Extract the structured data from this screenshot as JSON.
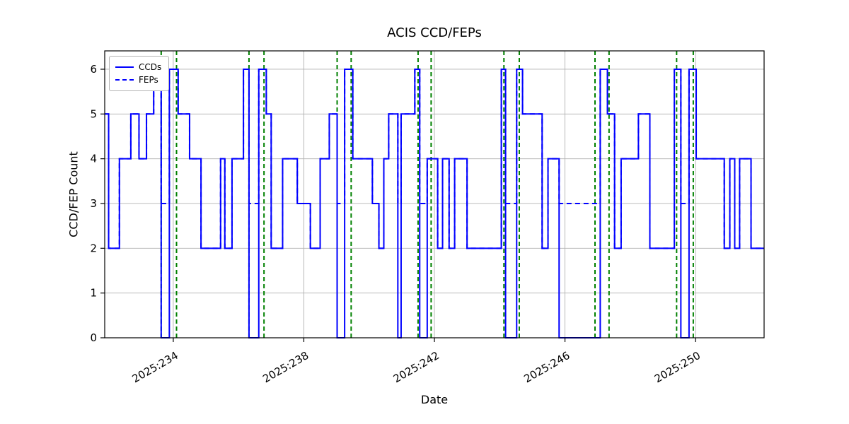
{
  "chart_data": {
    "type": "line",
    "title": "ACIS CCD/FEPs",
    "xlabel": "Date",
    "ylabel": "CCD/FEP Count",
    "xlim": [
      231.9,
      252.1
    ],
    "ylim": [
      0,
      6.41
    ],
    "x_ticks": [
      234,
      238,
      242,
      246,
      250
    ],
    "x_tick_labels": [
      "2025:234",
      "2025:238",
      "2025:242",
      "2025:246",
      "2025:250"
    ],
    "y_ticks": [
      0,
      1,
      2,
      3,
      4,
      5,
      6
    ],
    "grid": true,
    "legend_position": "upper-left",
    "colors": {
      "line": "#0000ff",
      "radzone": "#008000",
      "grid": "#b0b0b0",
      "spine": "#000000"
    },
    "series": [
      {
        "name": "CCDs",
        "style": "solid",
        "steps": [
          [
            231.9,
            5
          ],
          [
            232.02,
            2
          ],
          [
            232.35,
            4
          ],
          [
            232.7,
            5
          ],
          [
            232.95,
            4
          ],
          [
            233.18,
            5
          ],
          [
            233.4,
            6
          ],
          [
            233.63,
            0
          ],
          [
            233.88,
            6
          ],
          [
            234.15,
            5
          ],
          [
            234.5,
            4
          ],
          [
            234.85,
            2
          ],
          [
            235.45,
            4
          ],
          [
            235.58,
            2
          ],
          [
            235.8,
            4
          ],
          [
            236.15,
            6
          ],
          [
            236.32,
            0
          ],
          [
            236.62,
            6
          ],
          [
            236.85,
            5
          ],
          [
            237.0,
            2
          ],
          [
            237.35,
            4
          ],
          [
            237.8,
            3
          ],
          [
            238.2,
            2
          ],
          [
            238.5,
            4
          ],
          [
            238.78,
            5
          ],
          [
            239.02,
            0
          ],
          [
            239.25,
            6
          ],
          [
            239.5,
            4
          ],
          [
            240.1,
            3
          ],
          [
            240.3,
            2
          ],
          [
            240.45,
            4
          ],
          [
            240.6,
            5
          ],
          [
            240.88,
            0
          ],
          [
            240.98,
            5
          ],
          [
            241.4,
            6
          ],
          [
            241.55,
            0
          ],
          [
            241.78,
            4
          ],
          [
            242.1,
            2
          ],
          [
            242.25,
            4
          ],
          [
            242.45,
            2
          ],
          [
            242.62,
            4
          ],
          [
            243.0,
            2
          ],
          [
            244.05,
            6
          ],
          [
            244.18,
            0
          ],
          [
            244.52,
            6
          ],
          [
            244.7,
            5
          ],
          [
            245.3,
            2
          ],
          [
            245.48,
            4
          ],
          [
            245.82,
            0
          ],
          [
            247.08,
            6
          ],
          [
            247.3,
            5
          ],
          [
            247.52,
            2
          ],
          [
            247.72,
            4
          ],
          [
            248.25,
            5
          ],
          [
            248.6,
            2
          ],
          [
            249.35,
            6
          ],
          [
            249.55,
            0
          ],
          [
            249.8,
            6
          ],
          [
            250.02,
            4
          ],
          [
            250.88,
            2
          ],
          [
            251.05,
            4
          ],
          [
            251.2,
            2
          ],
          [
            251.35,
            4
          ],
          [
            251.7,
            2
          ]
        ]
      },
      {
        "name": "FEPs",
        "style": "dashed",
        "steps": [
          [
            231.9,
            5
          ],
          [
            232.02,
            2
          ],
          [
            232.35,
            4
          ],
          [
            232.7,
            5
          ],
          [
            232.95,
            4
          ],
          [
            233.18,
            5
          ],
          [
            233.4,
            6
          ],
          [
            233.63,
            3
          ],
          [
            233.88,
            6
          ],
          [
            234.15,
            5
          ],
          [
            234.5,
            4
          ],
          [
            234.85,
            2
          ],
          [
            235.45,
            4
          ],
          [
            235.58,
            2
          ],
          [
            235.8,
            4
          ],
          [
            236.15,
            6
          ],
          [
            236.32,
            3
          ],
          [
            236.62,
            6
          ],
          [
            236.85,
            5
          ],
          [
            237.0,
            2
          ],
          [
            237.35,
            4
          ],
          [
            237.8,
            3
          ],
          [
            238.2,
            2
          ],
          [
            238.5,
            4
          ],
          [
            238.78,
            5
          ],
          [
            239.02,
            3
          ],
          [
            239.25,
            6
          ],
          [
            239.5,
            4
          ],
          [
            240.1,
            3
          ],
          [
            240.3,
            2
          ],
          [
            240.45,
            4
          ],
          [
            240.6,
            5
          ],
          [
            240.88,
            3
          ],
          [
            240.98,
            5
          ],
          [
            241.4,
            6
          ],
          [
            241.55,
            3
          ],
          [
            241.78,
            4
          ],
          [
            242.1,
            2
          ],
          [
            242.25,
            4
          ],
          [
            242.45,
            2
          ],
          [
            242.62,
            4
          ],
          [
            243.0,
            2
          ],
          [
            244.05,
            6
          ],
          [
            244.18,
            3
          ],
          [
            244.52,
            6
          ],
          [
            244.7,
            5
          ],
          [
            245.3,
            2
          ],
          [
            245.48,
            4
          ],
          [
            245.82,
            3
          ],
          [
            247.08,
            6
          ],
          [
            247.3,
            5
          ],
          [
            247.52,
            2
          ],
          [
            247.72,
            4
          ],
          [
            248.25,
            5
          ],
          [
            248.6,
            2
          ],
          [
            249.35,
            6
          ],
          [
            249.55,
            3
          ],
          [
            249.8,
            6
          ],
          [
            250.02,
            4
          ],
          [
            250.88,
            2
          ],
          [
            251.05,
            4
          ],
          [
            251.2,
            2
          ],
          [
            251.35,
            4
          ],
          [
            251.7,
            2
          ]
        ]
      }
    ],
    "radzone_boundaries": [
      233.63,
      234.1,
      236.32,
      236.78,
      239.02,
      239.45,
      241.5,
      241.9,
      244.13,
      244.6,
      246.92,
      247.35,
      249.42,
      249.93
    ]
  }
}
